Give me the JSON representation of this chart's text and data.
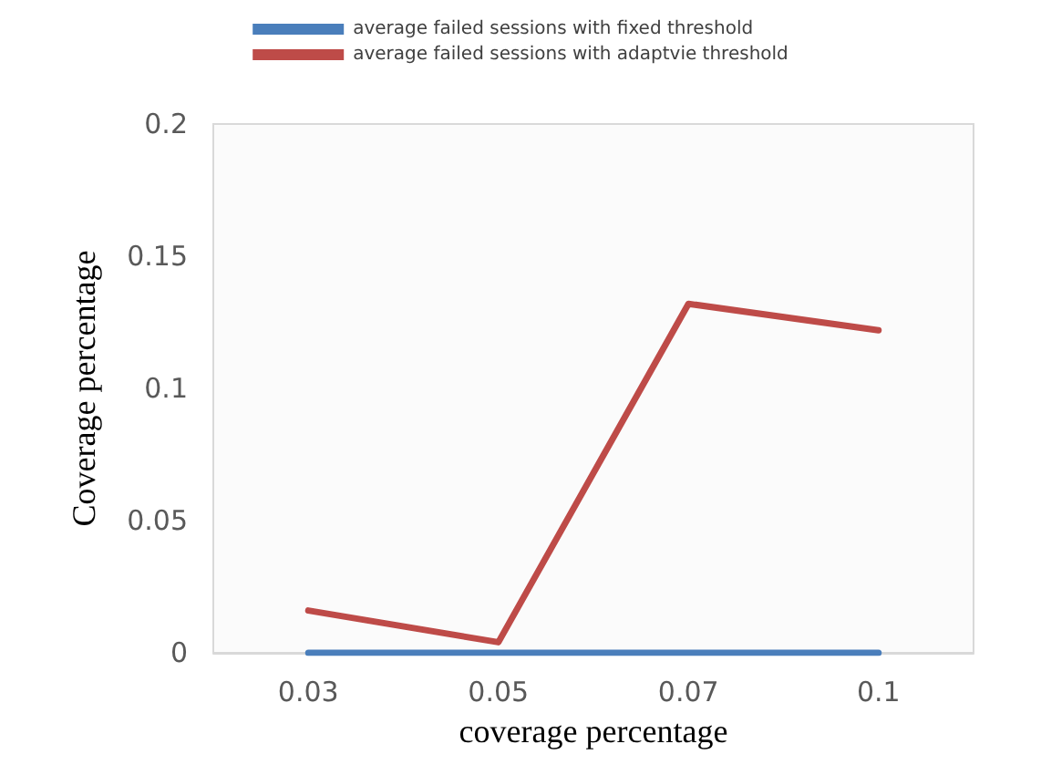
{
  "chart_data": {
    "type": "line",
    "xlabel": "coverage percentage",
    "ylabel": "Coverage percentage",
    "categories": [
      "0.03",
      "0.05",
      "0.07",
      "0.1"
    ],
    "series": [
      {
        "name": "average failed sessions with fixed threshold",
        "color": "#4a7ebb",
        "values": [
          0,
          0,
          0,
          0
        ]
      },
      {
        "name": "average failed sessions with adaptvie threshold",
        "color": "#be4b48",
        "values": [
          0.016,
          0.004,
          0.132,
          0.122
        ]
      }
    ],
    "ylim": [
      0,
      0.2
    ],
    "yticks": [
      0,
      0.05,
      0.1,
      0.15,
      0.2
    ],
    "grid": false,
    "legend": "top",
    "marker": "none",
    "line_style": "solid"
  }
}
